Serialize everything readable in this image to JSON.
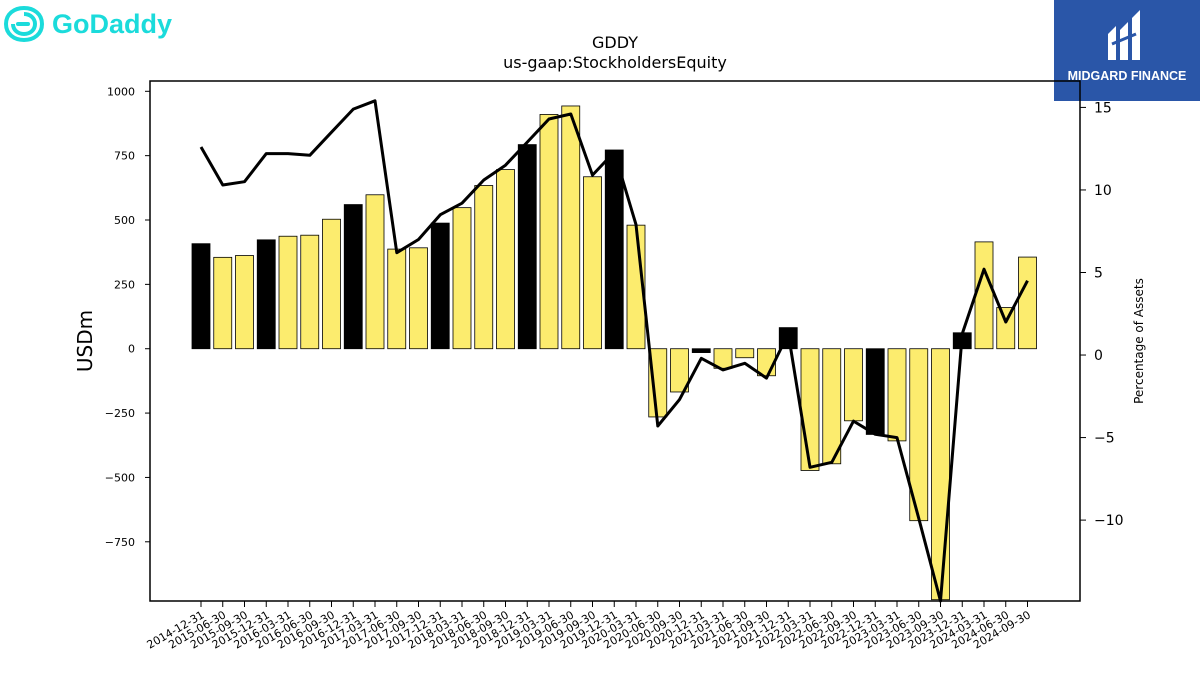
{
  "brand": {
    "left_logo_text": "GoDaddy",
    "right_logo_text": "MIDGARD FINANCE",
    "left_color": "#1bdbdb",
    "right_bg": "#2a56a8"
  },
  "chart_data": {
    "type": "bar",
    "title": "GDDY",
    "subtitle": "us-gaap:StockholdersEquity",
    "ylabel": "USDm",
    "y2label": "Percentage of Assets",
    "ylim": [
      -980,
      1040
    ],
    "y2lim": [
      -14.9,
      16.6
    ],
    "yticks": [
      1000,
      750,
      500,
      250,
      0,
      -250,
      -500,
      -750
    ],
    "ytick_labels": [
      "1000",
      "750",
      "500",
      "250",
      "0",
      "−250",
      "−500",
      "−750"
    ],
    "y2ticks": [
      15,
      10,
      5,
      0,
      -5,
      -10
    ],
    "y2tick_labels": [
      "15",
      "10",
      "5",
      "0",
      "−5",
      "−10"
    ],
    "categories": [
      "2014-12-31",
      "2015-06-30",
      "2015-09-30",
      "2015-12-31",
      "2016-03-31",
      "2016-06-30",
      "2016-09-30",
      "2016-12-31",
      "2017-03-31",
      "2017-06-30",
      "2017-09-30",
      "2017-12-31",
      "2018-03-31",
      "2018-06-30",
      "2018-09-30",
      "2018-12-31",
      "2019-03-31",
      "2019-06-30",
      "2019-09-30",
      "2019-12-31",
      "2020-03-31",
      "2020-06-30",
      "2020-09-30",
      "2020-12-31",
      "2021-03-31",
      "2021-06-30",
      "2021-09-30",
      "2021-12-31",
      "2022-03-31",
      "2022-06-30",
      "2022-09-30",
      "2022-12-31",
      "2023-03-31",
      "2023-06-30",
      "2023-09-30",
      "2023-12-31",
      "2024-03-31",
      "2024-06-30",
      "2024-09-30"
    ],
    "values": [
      408,
      355,
      362,
      423,
      437,
      441,
      503,
      560,
      598,
      387,
      392,
      488,
      548,
      634,
      696,
      793,
      910,
      943,
      668,
      772,
      480,
      -265,
      -168,
      -15,
      -76,
      -35,
      -105,
      82,
      -473,
      -447,
      -280,
      -333,
      -358,
      -668,
      -975,
      62,
      415,
      160,
      356
    ],
    "year_end": [
      true,
      false,
      false,
      true,
      false,
      false,
      false,
      true,
      false,
      false,
      false,
      true,
      false,
      false,
      false,
      true,
      false,
      false,
      false,
      true,
      false,
      false,
      false,
      true,
      false,
      false,
      false,
      true,
      false,
      false,
      false,
      true,
      false,
      false,
      false,
      true,
      false,
      false,
      false
    ],
    "pct_of_assets": [
      12.6,
      10.3,
      10.5,
      12.2,
      12.2,
      12.1,
      13.5,
      14.9,
      15.4,
      6.2,
      7.0,
      8.5,
      9.2,
      10.6,
      11.5,
      12.9,
      14.3,
      14.6,
      10.9,
      12.3,
      7.9,
      -4.3,
      -2.7,
      -0.2,
      -0.9,
      -0.5,
      -1.4,
      1.3,
      -6.8,
      -6.5,
      -4.0,
      -4.8,
      -5.0,
      -9.9,
      -14.9,
      1.3,
      5.2,
      2.0,
      4.5
    ],
    "colors": {
      "bar_quarter": "#fcec6e",
      "bar_year_end": "#000000",
      "line": "#000000"
    },
    "grid": false
  }
}
